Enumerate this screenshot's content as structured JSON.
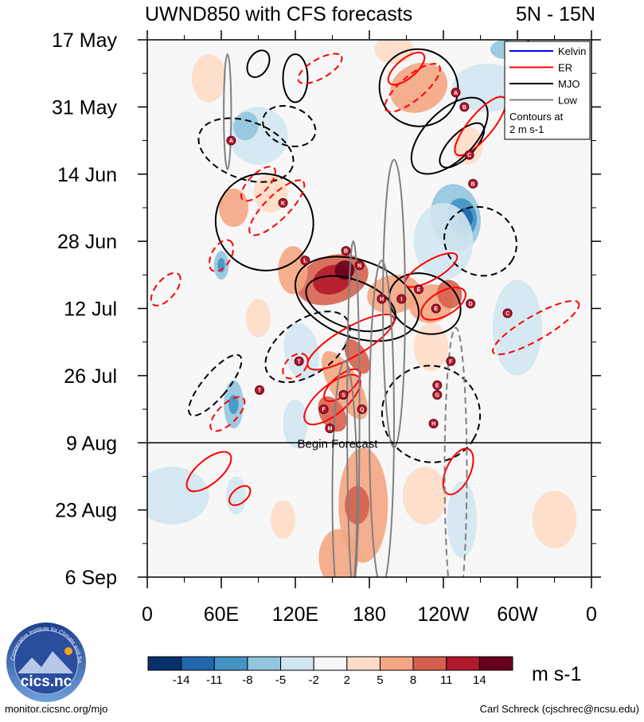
{
  "chart_data": {
    "type": "heatmap",
    "title": "UWND850 with CFS forecasts",
    "region": "5N - 15N",
    "x_tick_labels": [
      "0",
      "60E",
      "120E",
      "180",
      "120W",
      "60W",
      "0"
    ],
    "x_tick_lon": [
      0,
      60,
      120,
      180,
      240,
      300,
      360
    ],
    "y_tick_labels": [
      "17 May",
      "31 May",
      "14 Jun",
      "28 Jun",
      "12 Jul",
      "26 Jul",
      "9 Aug",
      "23 Aug",
      "6 Sep"
    ],
    "y_tick_day": [
      0,
      14,
      28,
      42,
      56,
      70,
      84,
      98,
      112
    ],
    "forecast_label": "Begin Forecast",
    "forecast_day": 84,
    "colorbar": {
      "unit": "m s-1",
      "levels": [
        "-14",
        "-11",
        "-8",
        "-5",
        "-2",
        "2",
        "5",
        "8",
        "11",
        "14"
      ],
      "colors": [
        "#08306b",
        "#2166ac",
        "#4393c3",
        "#92c5de",
        "#d1e5f0",
        "#f7f7f7",
        "#fddbc7",
        "#f4a582",
        "#d6604d",
        "#b2182b",
        "#67001f"
      ]
    },
    "legend": {
      "entries": [
        {
          "name": "Kelvin",
          "color": "#0000ff",
          "style": "solid"
        },
        {
          "name": "ER",
          "color": "#ff0000",
          "style": "solid"
        },
        {
          "name": "MJO",
          "color": "#000000",
          "style": "solid"
        },
        {
          "name": "Low",
          "color": "#808080",
          "style": "solid"
        }
      ],
      "note_line1": "Contours at",
      "note_line2": "2 m s-1",
      "placement": "top-right"
    },
    "storms": [
      {
        "label": "A",
        "lon": 68,
        "day": 21
      },
      {
        "label": "K",
        "lon": 110,
        "day": 34
      },
      {
        "label": "L",
        "lon": 128,
        "day": 46
      },
      {
        "label": "B",
        "lon": 161,
        "day": 44
      },
      {
        "label": "N",
        "lon": 172,
        "day": 47
      },
      {
        "label": "H",
        "lon": 190,
        "day": 54
      },
      {
        "label": "I",
        "lon": 206,
        "day": 54
      },
      {
        "label": "E",
        "lon": 220,
        "day": 52
      },
      {
        "label": "E",
        "lon": 234,
        "day": 56
      },
      {
        "label": "D",
        "lon": 262,
        "day": 55
      },
      {
        "label": "C",
        "lon": 292,
        "day": 57
      },
      {
        "label": "A",
        "lon": 250,
        "day": 11
      },
      {
        "label": "B",
        "lon": 257,
        "day": 14
      },
      {
        "label": "C",
        "lon": 261,
        "day": 24
      },
      {
        "label": "B",
        "lon": 264,
        "day": 30
      },
      {
        "label": "T",
        "lon": 123,
        "day": 67
      },
      {
        "label": "T",
        "lon": 91,
        "day": 73
      },
      {
        "label": "F",
        "lon": 246,
        "day": 67
      },
      {
        "label": "S",
        "lon": 159,
        "day": 74
      },
      {
        "label": "F",
        "lon": 143,
        "day": 77
      },
      {
        "label": "Q",
        "lon": 174,
        "day": 77
      },
      {
        "label": "M",
        "lon": 148,
        "day": 81
      },
      {
        "label": "E",
        "lon": 235,
        "day": 72
      },
      {
        "label": "G",
        "lon": 235,
        "day": 74
      },
      {
        "label": "H",
        "lon": 232,
        "day": 80
      }
    ]
  },
  "colorbar_unit": "m s-1",
  "footer": {
    "left": "monitor.cicsnc.org/mjo",
    "right": "Carl Schreck (cjschrec@ncsu.edu)"
  },
  "logo": {
    "text": "cics.nc",
    "ring_text": "Cooperative Institute for Climate and Satellites"
  }
}
